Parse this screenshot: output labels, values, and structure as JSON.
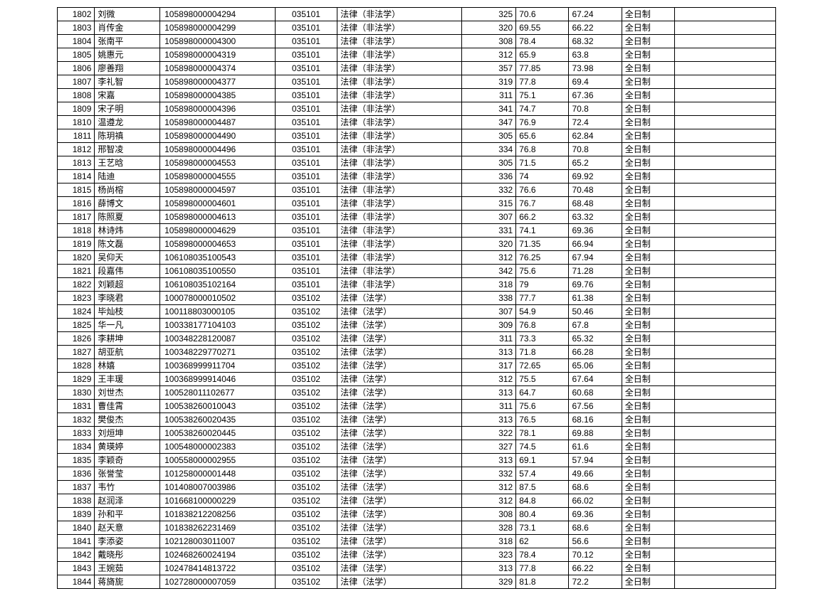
{
  "table": {
    "columns": [
      {
        "class": "col-0"
      },
      {
        "class": "col-1"
      },
      {
        "class": "col-2"
      },
      {
        "class": "col-3"
      },
      {
        "class": "col-4"
      },
      {
        "class": "col-5"
      },
      {
        "class": "col-6"
      },
      {
        "class": "col-7"
      },
      {
        "class": "col-8"
      },
      {
        "class": "col-9"
      }
    ],
    "rows": [
      [
        "1802",
        "刘微",
        "105898000004294",
        "035101",
        "法律（非法学）",
        "325",
        "70.6",
        "67.24",
        "全日制",
        ""
      ],
      [
        "1803",
        "肖传金",
        "105898000004299",
        "035101",
        "法律（非法学）",
        "320",
        "69.55",
        "66.22",
        "全日制",
        ""
      ],
      [
        "1804",
        "张南平",
        "105898000004300",
        "035101",
        "法律（非法学）",
        "308",
        "78.4",
        "68.32",
        "全日制",
        ""
      ],
      [
        "1805",
        "姚惠元",
        "105898000004319",
        "035101",
        "法律（非法学）",
        "312",
        "65.9",
        "63.8",
        "全日制",
        ""
      ],
      [
        "1806",
        "廖善翔",
        "105898000004374",
        "035101",
        "法律（非法学）",
        "357",
        "77.85",
        "73.98",
        "全日制",
        ""
      ],
      [
        "1807",
        "李礼智",
        "105898000004377",
        "035101",
        "法律（非法学）",
        "319",
        "77.8",
        "69.4",
        "全日制",
        ""
      ],
      [
        "1808",
        "宋嘉",
        "105898000004385",
        "035101",
        "法律（非法学）",
        "311",
        "75.1",
        "67.36",
        "全日制",
        ""
      ],
      [
        "1809",
        "宋子明",
        "105898000004396",
        "035101",
        "法律（非法学）",
        "341",
        "74.7",
        "70.8",
        "全日制",
        ""
      ],
      [
        "1810",
        "温遵龙",
        "105898000004487",
        "035101",
        "法律（非法学）",
        "347",
        "76.9",
        "72.4",
        "全日制",
        ""
      ],
      [
        "1811",
        "陈玥禛",
        "105898000004490",
        "035101",
        "法律（非法学）",
        "305",
        "65.6",
        "62.84",
        "全日制",
        ""
      ],
      [
        "1812",
        "邢智凌",
        "105898000004496",
        "035101",
        "法律（非法学）",
        "334",
        "76.8",
        "70.8",
        "全日制",
        ""
      ],
      [
        "1813",
        "王艺晗",
        "105898000004553",
        "035101",
        "法律（非法学）",
        "305",
        "71.5",
        "65.2",
        "全日制",
        ""
      ],
      [
        "1814",
        "陆迪",
        "105898000004555",
        "035101",
        "法律（非法学）",
        "336",
        "74",
        "69.92",
        "全日制",
        ""
      ],
      [
        "1815",
        "杨尚榕",
        "105898000004597",
        "035101",
        "法律（非法学）",
        "332",
        "76.6",
        "70.48",
        "全日制",
        ""
      ],
      [
        "1816",
        "薛博文",
        "105898000004601",
        "035101",
        "法律（非法学）",
        "315",
        "76.7",
        "68.48",
        "全日制",
        ""
      ],
      [
        "1817",
        "陈照夏",
        "105898000004613",
        "035101",
        "法律（非法学）",
        "307",
        "66.2",
        "63.32",
        "全日制",
        ""
      ],
      [
        "1818",
        "林诗炜",
        "105898000004629",
        "035101",
        "法律（非法学）",
        "331",
        "74.1",
        "69.36",
        "全日制",
        ""
      ],
      [
        "1819",
        "陈文磊",
        "105898000004653",
        "035101",
        "法律（非法学）",
        "320",
        "71.35",
        "66.94",
        "全日制",
        ""
      ],
      [
        "1820",
        "吴仰天",
        "106108035100543",
        "035101",
        "法律（非法学）",
        "312",
        "76.25",
        "67.94",
        "全日制",
        ""
      ],
      [
        "1821",
        "段嘉伟",
        "106108035100550",
        "035101",
        "法律（非法学）",
        "342",
        "75.6",
        "71.28",
        "全日制",
        ""
      ],
      [
        "1822",
        "刘颖超",
        "106108035102164",
        "035101",
        "法律（非法学）",
        "318",
        "79",
        "69.76",
        "全日制",
        ""
      ],
      [
        "1823",
        "李晓君",
        "100078000010502",
        "035102",
        "法律（法学）",
        "338",
        "77.7",
        "61.38",
        "全日制",
        ""
      ],
      [
        "1824",
        "毕灿枝",
        "100118803000105",
        "035102",
        "法律（法学）",
        "307",
        "54.9",
        "50.46",
        "全日制",
        ""
      ],
      [
        "1825",
        "华一凡",
        "100338177104103",
        "035102",
        "法律（法学）",
        "309",
        "76.8",
        "67.8",
        "全日制",
        ""
      ],
      [
        "1826",
        "李耕坤",
        "100348228120087",
        "035102",
        "法律（法学）",
        "311",
        "73.3",
        "65.32",
        "全日制",
        ""
      ],
      [
        "1827",
        "胡亚航",
        "100348229770271",
        "035102",
        "法律（法学）",
        "313",
        "71.8",
        "66.28",
        "全日制",
        ""
      ],
      [
        "1828",
        "林嬉",
        "100368999911704",
        "035102",
        "法律（法学）",
        "317",
        "72.65",
        "65.06",
        "全日制",
        ""
      ],
      [
        "1829",
        "王丰瑗",
        "100368999914046",
        "035102",
        "法律（法学）",
        "312",
        "75.5",
        "67.64",
        "全日制",
        ""
      ],
      [
        "1830",
        "刘世杰",
        "100528011102677",
        "035102",
        "法律（法学）",
        "313",
        "64.7",
        "60.68",
        "全日制",
        ""
      ],
      [
        "1831",
        "曹佳霄",
        "100538260010043",
        "035102",
        "法律（法学）",
        "311",
        "75.6",
        "67.56",
        "全日制",
        ""
      ],
      [
        "1832",
        "樊俊杰",
        "100538260020435",
        "035102",
        "法律（法学）",
        "313",
        "76.5",
        "68.16",
        "全日制",
        ""
      ],
      [
        "1833",
        "刘烜坤",
        "100538260020445",
        "035102",
        "法律（法学）",
        "322",
        "78.1",
        "69.88",
        "全日制",
        ""
      ],
      [
        "1834",
        "黄瑛婷",
        "100548000002383",
        "035102",
        "法律（法学）",
        "327",
        "74.5",
        "61.6",
        "全日制",
        ""
      ],
      [
        "1835",
        "李颖奇",
        "100558000002955",
        "035102",
        "法律（法学）",
        "313",
        "69.1",
        "57.94",
        "全日制",
        ""
      ],
      [
        "1836",
        "张誉莹",
        "101258000001448",
        "035102",
        "法律（法学）",
        "332",
        "57.4",
        "49.66",
        "全日制",
        ""
      ],
      [
        "1837",
        "韦竹",
        "101408007003986",
        "035102",
        "法律（法学）",
        "312",
        "87.5",
        "68.6",
        "全日制",
        ""
      ],
      [
        "1838",
        "赵润泽",
        "101668100000229",
        "035102",
        "法律（法学）",
        "312",
        "84.8",
        "66.02",
        "全日制",
        ""
      ],
      [
        "1839",
        "孙和平",
        "101838212208256",
        "035102",
        "法律（法学）",
        "308",
        "80.4",
        "69.36",
        "全日制",
        ""
      ],
      [
        "1840",
        "赵天意",
        "101838262231469",
        "035102",
        "法律（法学）",
        "328",
        "73.1",
        "68.6",
        "全日制",
        ""
      ],
      [
        "1841",
        "李添姿",
        "102128003011007",
        "035102",
        "法律（法学）",
        "318",
        "62",
        "56.6",
        "全日制",
        ""
      ],
      [
        "1842",
        "戴晓彤",
        "102468260024194",
        "035102",
        "法律（法学）",
        "323",
        "78.4",
        "70.12",
        "全日制",
        ""
      ],
      [
        "1843",
        "王婉茹",
        "102478414813722",
        "035102",
        "法律（法学）",
        "313",
        "77.8",
        "66.22",
        "全日制",
        ""
      ],
      [
        "1844",
        "蒋旖旎",
        "102728000007059",
        "035102",
        "法律（法学）",
        "329",
        "81.8",
        "72.2",
        "全日制",
        ""
      ]
    ]
  }
}
